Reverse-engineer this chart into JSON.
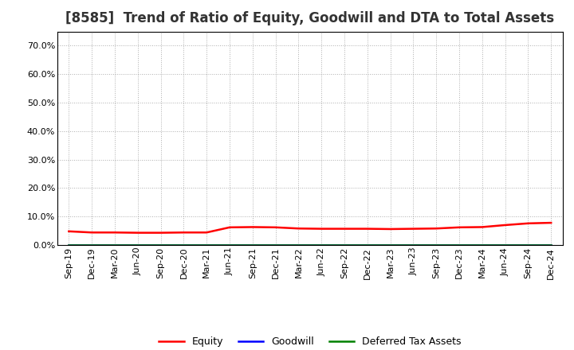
{
  "title": "[8585]  Trend of Ratio of Equity, Goodwill and DTA to Total Assets",
  "x_labels": [
    "Sep-19",
    "Dec-19",
    "Mar-20",
    "Jun-20",
    "Sep-20",
    "Dec-20",
    "Mar-21",
    "Jun-21",
    "Sep-21",
    "Dec-21",
    "Mar-22",
    "Jun-22",
    "Sep-22",
    "Dec-22",
    "Mar-23",
    "Jun-23",
    "Sep-23",
    "Dec-23",
    "Mar-24",
    "Jun-24",
    "Sep-24",
    "Dec-24"
  ],
  "equity": [
    0.048,
    0.044,
    0.044,
    0.043,
    0.043,
    0.044,
    0.044,
    0.062,
    0.063,
    0.062,
    0.058,
    0.057,
    0.057,
    0.057,
    0.056,
    0.057,
    0.058,
    0.062,
    0.063,
    0.07,
    0.076,
    0.078
  ],
  "goodwill": [
    0.001,
    0.001,
    0.001,
    0.001,
    0.001,
    0.001,
    0.001,
    0.001,
    0.001,
    0.001,
    0.001,
    0.001,
    0.001,
    0.001,
    0.001,
    0.001,
    0.001,
    0.001,
    0.001,
    0.001,
    0.001,
    0.001
  ],
  "dta": [
    0.0003,
    0.0003,
    0.0003,
    0.0003,
    0.0003,
    0.0003,
    0.0003,
    0.0003,
    0.0003,
    0.0003,
    0.0003,
    0.0003,
    0.0003,
    0.0003,
    0.0003,
    0.0003,
    0.0003,
    0.0003,
    0.0003,
    0.0003,
    0.0003,
    0.0003
  ],
  "equity_color": "#FF0000",
  "goodwill_color": "#0000FF",
  "dta_color": "#008000",
  "ylim": [
    0.0,
    0.75
  ],
  "yticks": [
    0.0,
    0.1,
    0.2,
    0.3,
    0.4,
    0.5,
    0.6,
    0.7
  ],
  "background_color": "#FFFFFF",
  "plot_bg_color": "#FFFFFF",
  "grid_color": "#999999",
  "title_fontsize": 12,
  "tick_fontsize": 8,
  "legend_fontsize": 9,
  "line_width": 1.8
}
